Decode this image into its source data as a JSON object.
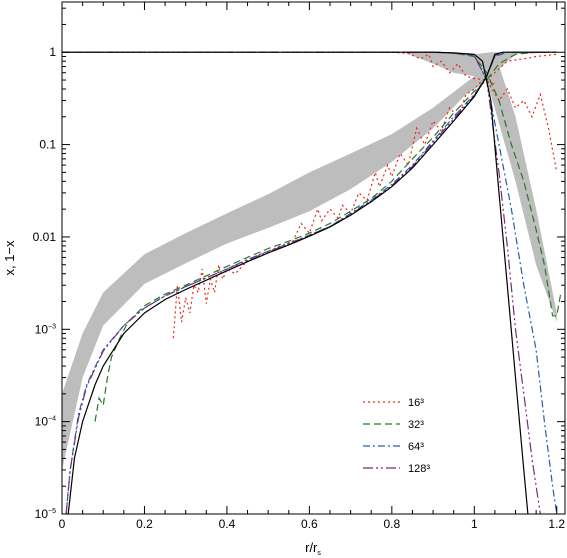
{
  "chart_data": {
    "type": "line",
    "xlabel": "r/r",
    "xlabel_sub": "s",
    "ylabel": "x, 1−x",
    "xlim": [
      0,
      1.22
    ],
    "ylim": [
      1e-05,
      3.5
    ],
    "y_scale": "log",
    "x_ticks": [
      0,
      0.2,
      0.4,
      0.6,
      0.8,
      1,
      1.2
    ],
    "x_tick_labels": [
      "0",
      "0.2",
      "0.4",
      "0.6",
      "0.8",
      "1",
      "1.2"
    ],
    "y_ticks": [
      {
        "value": 1,
        "label": "1"
      },
      {
        "value": 0.1,
        "label": "0.1"
      },
      {
        "value": 0.01,
        "label": "0.01"
      },
      {
        "value": 0.001,
        "base": "10",
        "exp": "−3"
      },
      {
        "value": 0.0001,
        "base": "10",
        "exp": "−4"
      },
      {
        "value": 1e-05,
        "base": "10",
        "exp": "−5"
      }
    ],
    "legend_position": "lower-right",
    "band": {
      "color": "#bdbdbd",
      "upper": [
        [
          0,
          0.0002
        ],
        [
          0.05,
          0.0009
        ],
        [
          0.1,
          0.0025
        ],
        [
          0.2,
          0.0065
        ],
        [
          0.3,
          0.011
        ],
        [
          0.4,
          0.018
        ],
        [
          0.5,
          0.029
        ],
        [
          0.6,
          0.05
        ],
        [
          0.7,
          0.08
        ],
        [
          0.8,
          0.13
        ],
        [
          0.9,
          0.25
        ],
        [
          1.0,
          0.55
        ],
        [
          1.03,
          0.9
        ],
        [
          1.05,
          0.99
        ],
        [
          1.1,
          0.2
        ],
        [
          1.15,
          0.02
        ],
        [
          1.2,
          0.0015
        ]
      ],
      "lower": [
        [
          0,
          3e-05
        ],
        [
          0.05,
          0.0003
        ],
        [
          0.1,
          0.0011
        ],
        [
          0.2,
          0.0031
        ],
        [
          0.3,
          0.0052
        ],
        [
          0.4,
          0.0085
        ],
        [
          0.5,
          0.0125
        ],
        [
          0.6,
          0.019
        ],
        [
          0.7,
          0.033
        ],
        [
          0.8,
          0.065
        ],
        [
          0.9,
          0.15
        ],
        [
          0.98,
          0.35
        ],
        [
          1.0,
          0.4
        ],
        [
          1.03,
          0.5
        ],
        [
          1.06,
          0.17
        ],
        [
          1.1,
          0.04
        ],
        [
          1.15,
          0.005
        ],
        [
          1.2,
          0.0012
        ]
      ]
    },
    "band_upper_branch": {
      "upper": [
        [
          0.83,
          1
        ],
        [
          0.9,
          1
        ],
        [
          0.95,
          0.98
        ],
        [
          1.0,
          0.95
        ],
        [
          1.04,
          1
        ],
        [
          1.2,
          1
        ]
      ],
      "lower": [
        [
          0.83,
          1
        ],
        [
          0.9,
          0.75
        ],
        [
          0.95,
          0.6
        ],
        [
          1.0,
          0.55
        ],
        [
          1.05,
          0.6
        ],
        [
          1.1,
          0.95
        ],
        [
          1.2,
          1
        ]
      ]
    },
    "series": [
      {
        "name": "16³",
        "color": "#e8261e",
        "dash": "2,3",
        "neutral": [
          [
            0.27,
            0.0008
          ],
          [
            0.28,
            0.003
          ],
          [
            0.29,
            0.0012
          ],
          [
            0.3,
            0.0022
          ],
          [
            0.31,
            0.0015
          ],
          [
            0.32,
            0.003
          ],
          [
            0.33,
            0.0025
          ],
          [
            0.34,
            0.0045
          ],
          [
            0.35,
            0.0019
          ],
          [
            0.36,
            0.0035
          ],
          [
            0.37,
            0.0025
          ],
          [
            0.38,
            0.005
          ],
          [
            0.39,
            0.0035
          ],
          [
            0.4,
            0.0045
          ],
          [
            0.42,
            0.004
          ],
          [
            0.45,
            0.0055
          ],
          [
            0.48,
            0.0065
          ],
          [
            0.5,
            0.007
          ],
          [
            0.53,
            0.008
          ],
          [
            0.56,
            0.009
          ],
          [
            0.58,
            0.014
          ],
          [
            0.6,
            0.011
          ],
          [
            0.62,
            0.02
          ],
          [
            0.63,
            0.015
          ],
          [
            0.65,
            0.02
          ],
          [
            0.67,
            0.016
          ],
          [
            0.68,
            0.022
          ],
          [
            0.7,
            0.018
          ],
          [
            0.72,
            0.03
          ],
          [
            0.74,
            0.025
          ],
          [
            0.76,
            0.05
          ],
          [
            0.77,
            0.035
          ],
          [
            0.79,
            0.06
          ],
          [
            0.8,
            0.045
          ],
          [
            0.82,
            0.08
          ],
          [
            0.84,
            0.06
          ],
          [
            0.86,
            0.15
          ],
          [
            0.88,
            0.1
          ],
          [
            0.9,
            0.18
          ],
          [
            0.92,
            0.14
          ],
          [
            0.94,
            0.25
          ],
          [
            0.96,
            0.2
          ],
          [
            0.98,
            0.35
          ],
          [
            1.0,
            0.4
          ],
          [
            1.02,
            0.5
          ],
          [
            1.05,
            0.45
          ]
        ],
        "ionized": [
          [
            0.62,
            1
          ],
          [
            0.8,
            1
          ],
          [
            0.84,
            0.97
          ],
          [
            0.87,
            0.85
          ],
          [
            0.89,
            0.95
          ],
          [
            0.9,
            0.7
          ],
          [
            0.92,
            0.8
          ],
          [
            0.94,
            0.6
          ],
          [
            0.96,
            0.75
          ],
          [
            0.98,
            0.55
          ],
          [
            1.0,
            0.52
          ],
          [
            1.03,
            0.5
          ],
          [
            1.06,
            0.3
          ],
          [
            1.08,
            0.4
          ],
          [
            1.1,
            0.25
          ],
          [
            1.12,
            0.3
          ],
          [
            1.14,
            0.2
          ],
          [
            1.16,
            0.35
          ],
          [
            1.18,
            0.15
          ],
          [
            1.2,
            0.05
          ]
        ],
        "rising_tail": [
          [
            1.03,
            0.5
          ],
          [
            1.08,
            0.8
          ],
          [
            1.12,
            0.85
          ],
          [
            1.15,
            0.9
          ],
          [
            1.2,
            0.95
          ]
        ]
      },
      {
        "name": "32³",
        "color": "#237a23",
        "dash": "7,4",
        "neutral": [
          [
            0.08,
            0.0001
          ],
          [
            0.09,
            0.00018
          ],
          [
            0.1,
            0.00015
          ],
          [
            0.11,
            0.0003
          ],
          [
            0.12,
            0.0005
          ],
          [
            0.14,
            0.0008
          ],
          [
            0.16,
            0.0012
          ],
          [
            0.2,
            0.0018
          ],
          [
            0.25,
            0.0024
          ],
          [
            0.3,
            0.003
          ],
          [
            0.35,
            0.0038
          ],
          [
            0.4,
            0.0048
          ],
          [
            0.45,
            0.006
          ],
          [
            0.5,
            0.0075
          ],
          [
            0.55,
            0.009
          ],
          [
            0.6,
            0.011
          ],
          [
            0.65,
            0.014
          ],
          [
            0.7,
            0.019
          ],
          [
            0.75,
            0.026
          ],
          [
            0.8,
            0.04
          ],
          [
            0.85,
            0.07
          ],
          [
            0.9,
            0.12
          ],
          [
            0.95,
            0.22
          ],
          [
            1.0,
            0.38
          ],
          [
            1.03,
            0.5
          ],
          [
            1.06,
            0.75
          ],
          [
            1.1,
            0.95
          ],
          [
            1.15,
            1
          ],
          [
            1.2,
            1
          ]
        ],
        "ionized": [
          [
            0,
            1
          ],
          [
            0.9,
            1
          ],
          [
            0.95,
            0.98
          ],
          [
            1.0,
            0.9
          ],
          [
            1.03,
            0.6
          ],
          [
            1.06,
            0.3
          ],
          [
            1.09,
            0.1
          ],
          [
            1.12,
            0.04
          ],
          [
            1.15,
            0.012
          ],
          [
            1.17,
            0.005
          ],
          [
            1.19,
            0.0014
          ],
          [
            1.2,
            0.0014
          ],
          [
            1.21,
            0.0025
          ]
        ]
      },
      {
        "name": "64³",
        "color": "#2060b0",
        "dash": "7,3,2,3",
        "neutral": [
          [
            0.01,
            1e-05
          ],
          [
            0.02,
            3e-05
          ],
          [
            0.04,
            0.00012
          ],
          [
            0.06,
            0.00025
          ],
          [
            0.1,
            0.0006
          ],
          [
            0.15,
            0.0011
          ],
          [
            0.2,
            0.0017
          ],
          [
            0.25,
            0.0023
          ],
          [
            0.3,
            0.0029
          ],
          [
            0.35,
            0.0036
          ],
          [
            0.4,
            0.0045
          ],
          [
            0.45,
            0.0057
          ],
          [
            0.5,
            0.007
          ],
          [
            0.55,
            0.0085
          ],
          [
            0.6,
            0.0105
          ],
          [
            0.65,
            0.013
          ],
          [
            0.7,
            0.018
          ],
          [
            0.75,
            0.025
          ],
          [
            0.8,
            0.037
          ],
          [
            0.85,
            0.06
          ],
          [
            0.9,
            0.11
          ],
          [
            0.95,
            0.2
          ],
          [
            1.0,
            0.35
          ],
          [
            1.03,
            0.55
          ],
          [
            1.05,
            0.9
          ],
          [
            1.08,
            1
          ],
          [
            1.2,
            1
          ]
        ],
        "ionized": [
          [
            0,
            1
          ],
          [
            0.9,
            1
          ],
          [
            0.95,
            0.98
          ],
          [
            1.0,
            0.92
          ],
          [
            1.03,
            0.5
          ],
          [
            1.06,
            0.1
          ],
          [
            1.09,
            0.02
          ],
          [
            1.12,
            0.003
          ],
          [
            1.15,
            0.0006
          ],
          [
            1.17,
            0.0001
          ],
          [
            1.19,
            2e-05
          ],
          [
            1.2,
            1e-05
          ]
        ]
      },
      {
        "name": "128³",
        "color": "#7a2a7a",
        "dash": "10,3,2,3,2,3",
        "neutral": [
          [
            0.01,
            1e-05
          ],
          [
            0.02,
            3e-05
          ],
          [
            0.04,
            0.00011
          ],
          [
            0.06,
            0.00024
          ],
          [
            0.1,
            0.00058
          ],
          [
            0.15,
            0.0011
          ],
          [
            0.2,
            0.0017
          ],
          [
            0.25,
            0.0023
          ],
          [
            0.3,
            0.0029
          ],
          [
            0.35,
            0.0036
          ],
          [
            0.4,
            0.0045
          ],
          [
            0.45,
            0.0056
          ],
          [
            0.5,
            0.0069
          ],
          [
            0.55,
            0.0084
          ],
          [
            0.6,
            0.0104
          ],
          [
            0.65,
            0.013
          ],
          [
            0.7,
            0.0175
          ],
          [
            0.75,
            0.0245
          ],
          [
            0.8,
            0.036
          ],
          [
            0.85,
            0.058
          ],
          [
            0.9,
            0.105
          ],
          [
            0.95,
            0.19
          ],
          [
            1.0,
            0.34
          ],
          [
            1.03,
            0.55
          ],
          [
            1.05,
            0.92
          ],
          [
            1.07,
            1
          ],
          [
            1.2,
            1
          ]
        ],
        "ionized": [
          [
            0,
            1
          ],
          [
            0.9,
            1
          ],
          [
            0.95,
            0.98
          ],
          [
            1.0,
            0.93
          ],
          [
            1.03,
            0.5
          ],
          [
            1.06,
            0.05
          ],
          [
            1.08,
            0.008
          ],
          [
            1.1,
            0.001
          ],
          [
            1.12,
            0.0002
          ],
          [
            1.14,
            4e-05
          ],
          [
            1.16,
            1e-05
          ]
        ]
      },
      {
        "name": "",
        "color": "#000000",
        "dash": "",
        "neutral": [
          [
            0.015,
            1e-05
          ],
          [
            0.03,
            4e-05
          ],
          [
            0.05,
            0.0001
          ],
          [
            0.08,
            0.00025
          ],
          [
            0.1,
            0.0004
          ],
          [
            0.15,
            0.0009
          ],
          [
            0.2,
            0.0015
          ],
          [
            0.25,
            0.0021
          ],
          [
            0.3,
            0.0027
          ],
          [
            0.35,
            0.0034
          ],
          [
            0.4,
            0.0043
          ],
          [
            0.45,
            0.0054
          ],
          [
            0.5,
            0.0067
          ],
          [
            0.55,
            0.0082
          ],
          [
            0.6,
            0.0102
          ],
          [
            0.65,
            0.0128
          ],
          [
            0.7,
            0.0172
          ],
          [
            0.75,
            0.024
          ],
          [
            0.8,
            0.035
          ],
          [
            0.85,
            0.056
          ],
          [
            0.9,
            0.1
          ],
          [
            0.95,
            0.18
          ],
          [
            1.0,
            0.33
          ],
          [
            1.03,
            0.55
          ],
          [
            1.05,
            0.95
          ],
          [
            1.07,
            1
          ],
          [
            1.2,
            1
          ]
        ],
        "ionized": [
          [
            0,
            1
          ],
          [
            0.9,
            1
          ],
          [
            0.95,
            0.985
          ],
          [
            1.0,
            0.95
          ],
          [
            1.02,
            0.8
          ],
          [
            1.04,
            0.3
          ],
          [
            1.06,
            0.03
          ],
          [
            1.08,
            0.003
          ],
          [
            1.1,
            0.0003
          ],
          [
            1.12,
            3e-05
          ],
          [
            1.13,
            1e-05
          ]
        ]
      }
    ]
  }
}
